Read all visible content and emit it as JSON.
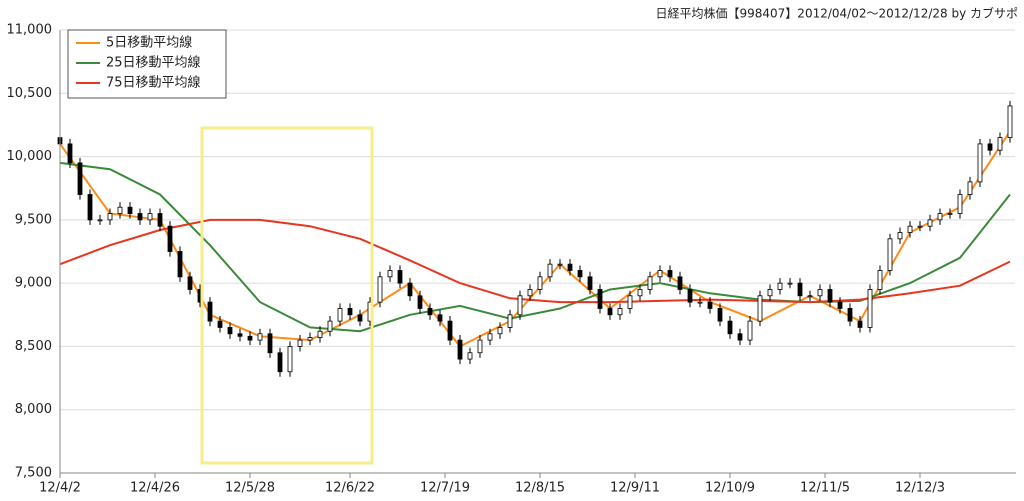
{
  "chart_data": {
    "type": "candlestick",
    "title": "日経平均株価【998407】2012/04/02～2012/12/28 by カブサポ",
    "xlim": [
      0,
      191
    ],
    "xticks": [
      {
        "value": 0,
        "label": "12/4/2"
      },
      {
        "value": 19,
        "label": "12/4/26"
      },
      {
        "value": 38,
        "label": "12/5/28"
      },
      {
        "value": 58,
        "label": "12/6/22"
      },
      {
        "value": 77,
        "label": "12/7/19"
      },
      {
        "value": 96,
        "label": "12/8/15"
      },
      {
        "value": 115,
        "label": "12/9/11"
      },
      {
        "value": 134,
        "label": "12/10/9"
      },
      {
        "value": 153,
        "label": "12/11/5"
      },
      {
        "value": 172,
        "label": "12/12/3"
      }
    ],
    "ylim": [
      7500,
      11000
    ],
    "yticks": [
      {
        "value": 7500,
        "label": "7,500"
      },
      {
        "value": 8000,
        "label": "8,000"
      },
      {
        "value": 8500,
        "label": "8,500"
      },
      {
        "value": 9000,
        "label": "9,000"
      },
      {
        "value": 9500,
        "label": "9,500"
      },
      {
        "value": 10000,
        "label": "10,000"
      },
      {
        "value": 10500,
        "label": "10,500"
      },
      {
        "value": 11000,
        "label": "11,000"
      }
    ],
    "grid": true,
    "legend": "top-left",
    "up_color": "#ffffff",
    "down_color": "#000000",
    "candles": {
      "x": [
        0,
        2,
        4,
        6,
        8,
        10,
        12,
        14,
        16,
        18,
        20,
        22,
        24,
        26,
        28,
        30,
        32,
        34,
        36,
        38,
        40,
        42,
        44,
        46,
        48,
        50,
        52,
        54,
        56,
        58,
        60,
        62,
        64,
        66,
        68,
        70,
        72,
        74,
        76,
        78,
        80,
        82,
        84,
        86,
        88,
        90,
        92,
        94,
        96,
        98,
        100,
        102,
        104,
        106,
        108,
        110,
        112,
        114,
        116,
        118,
        120,
        122,
        124,
        126,
        128,
        130,
        132,
        134,
        136,
        138,
        140,
        142,
        144,
        146,
        148,
        150,
        152,
        154,
        156,
        158,
        160,
        162,
        164,
        166,
        168,
        170,
        172,
        174,
        176,
        178,
        180,
        182,
        184,
        186,
        188,
        190
      ],
      "open": [
        10150,
        10100,
        9950,
        9700,
        9500,
        9500,
        9550,
        9600,
        9550,
        9500,
        9550,
        9450,
        9250,
        9050,
        8950,
        8850,
        8700,
        8650,
        8600,
        8580,
        8550,
        8600,
        8450,
        8300,
        8500,
        8550,
        8570,
        8620,
        8700,
        8800,
        8750,
        8700,
        8850,
        9050,
        9100,
        9000,
        8900,
        8800,
        8750,
        8700,
        8550,
        8400,
        8450,
        8550,
        8600,
        8650,
        8750,
        8900,
        8950,
        9050,
        9150,
        9150,
        9100,
        9050,
        8950,
        8800,
        8750,
        8800,
        8900,
        8950,
        9050,
        9100,
        9050,
        8950,
        8850,
        8850,
        8800,
        8700,
        8600,
        8550,
        8700,
        8900,
        8950,
        9000,
        9000,
        8900,
        8900,
        8950,
        8850,
        8800,
        8700,
        8650,
        8950,
        9100,
        9350,
        9400,
        9450,
        9450,
        9500,
        9550,
        9550,
        9700,
        9800,
        10100,
        10050,
        10150
      ],
      "high": [
        10190,
        10140,
        9990,
        9740,
        9540,
        9590,
        9640,
        9640,
        9590,
        9590,
        9590,
        9490,
        9290,
        9090,
        8990,
        8890,
        8740,
        8690,
        8640,
        8620,
        8640,
        8640,
        8490,
        8540,
        8590,
        8610,
        8660,
        8740,
        8840,
        8840,
        8790,
        8890,
        9090,
        9140,
        9140,
        9040,
        8940,
        8840,
        8790,
        8740,
        8590,
        8490,
        8590,
        8640,
        8690,
        8790,
        8940,
        8990,
        9090,
        9190,
        9190,
        9190,
        9140,
        9090,
        8990,
        8840,
        8840,
        8940,
        8990,
        9090,
        9140,
        9140,
        9090,
        8990,
        8890,
        8890,
        8840,
        8740,
        8640,
        8740,
        8940,
        8990,
        9040,
        9040,
        9040,
        8940,
        8990,
        8990,
        8890,
        8840,
        8740,
        8990,
        9140,
        9390,
        9440,
        9490,
        9490,
        9540,
        9590,
        9590,
        9740,
        9840,
        10140,
        10140,
        10190,
        10440
      ],
      "low": [
        10060,
        9910,
        9660,
        9460,
        9460,
        9460,
        9510,
        9510,
        9460,
        9460,
        9410,
        9210,
        9010,
        8910,
        8810,
        8660,
        8610,
        8560,
        8540,
        8510,
        8510,
        8410,
        8260,
        8260,
        8460,
        8510,
        8530,
        8580,
        8660,
        8710,
        8660,
        8660,
        8810,
        9010,
        8960,
        8860,
        8760,
        8710,
        8660,
        8510,
        8360,
        8360,
        8410,
        8510,
        8560,
        8610,
        8710,
        8860,
        8910,
        9010,
        9110,
        9060,
        9010,
        8910,
        8760,
        8710,
        8710,
        8760,
        8860,
        8910,
        9010,
        9010,
        8910,
        8810,
        8810,
        8760,
        8660,
        8560,
        8510,
        8510,
        8660,
        8860,
        8910,
        8960,
        8860,
        8860,
        8860,
        8810,
        8760,
        8660,
        8610,
        8610,
        8910,
        9060,
        9310,
        9360,
        9410,
        9410,
        9460,
        9510,
        9510,
        9660,
        9760,
        10010,
        10010,
        10110
      ],
      "close": [
        10100,
        9950,
        9700,
        9500,
        9500,
        9550,
        9600,
        9550,
        9500,
        9550,
        9450,
        9250,
        9050,
        8950,
        8850,
        8700,
        8650,
        8600,
        8580,
        8550,
        8600,
        8450,
        8300,
        8500,
        8550,
        8570,
        8620,
        8700,
        8800,
        8750,
        8700,
        8850,
        9050,
        9100,
        9000,
        8900,
        8800,
        8750,
        8700,
        8550,
        8400,
        8450,
        8550,
        8600,
        8650,
        8750,
        8900,
        8950,
        9050,
        9150,
        9150,
        9100,
        9050,
        8950,
        8800,
        8750,
        8800,
        8900,
        8950,
        9050,
        9100,
        9050,
        8950,
        8850,
        8850,
        8800,
        8700,
        8600,
        8550,
        8700,
        8900,
        8950,
        9000,
        9000,
        8900,
        8900,
        8950,
        8850,
        8800,
        8700,
        8650,
        8950,
        9100,
        9350,
        9400,
        9450,
        9450,
        9500,
        9550,
        9550,
        9700,
        9800,
        10100,
        10050,
        10150,
        10400
      ]
    },
    "series": [
      {
        "name": "5日移動平均線",
        "color": "#ff8c1a",
        "x": [
          0,
          10,
          20,
          30,
          40,
          50,
          60,
          70,
          80,
          90,
          100,
          110,
          120,
          130,
          140,
          150,
          160,
          170,
          180,
          190
        ],
        "values": [
          10100,
          9550,
          9500,
          8750,
          8580,
          8550,
          8750,
          9000,
          8500,
          8700,
          9150,
          8800,
          9100,
          8850,
          8700,
          8900,
          8700,
          9400,
          9600,
          10200
        ]
      },
      {
        "name": "25日移動平均線",
        "color": "#3a8a3a",
        "x": [
          0,
          10,
          20,
          30,
          40,
          50,
          60,
          70,
          80,
          90,
          100,
          110,
          120,
          130,
          140,
          150,
          160,
          170,
          180,
          190
        ],
        "values": [
          9950,
          9900,
          9700,
          9300,
          8850,
          8650,
          8620,
          8750,
          8820,
          8720,
          8800,
          8950,
          9000,
          8920,
          8870,
          8850,
          8860,
          9000,
          9200,
          9700
        ]
      },
      {
        "name": "75日移動平均線",
        "color": "#e8351e",
        "x": [
          0,
          10,
          20,
          30,
          40,
          50,
          60,
          70,
          80,
          90,
          100,
          110,
          120,
          130,
          140,
          150,
          160,
          170,
          180,
          190
        ],
        "values": [
          9150,
          9300,
          9420,
          9500,
          9500,
          9450,
          9350,
          9180,
          9000,
          8880,
          8850,
          8850,
          8860,
          8870,
          8860,
          8850,
          8870,
          8920,
          8980,
          9170
        ]
      }
    ]
  }
}
